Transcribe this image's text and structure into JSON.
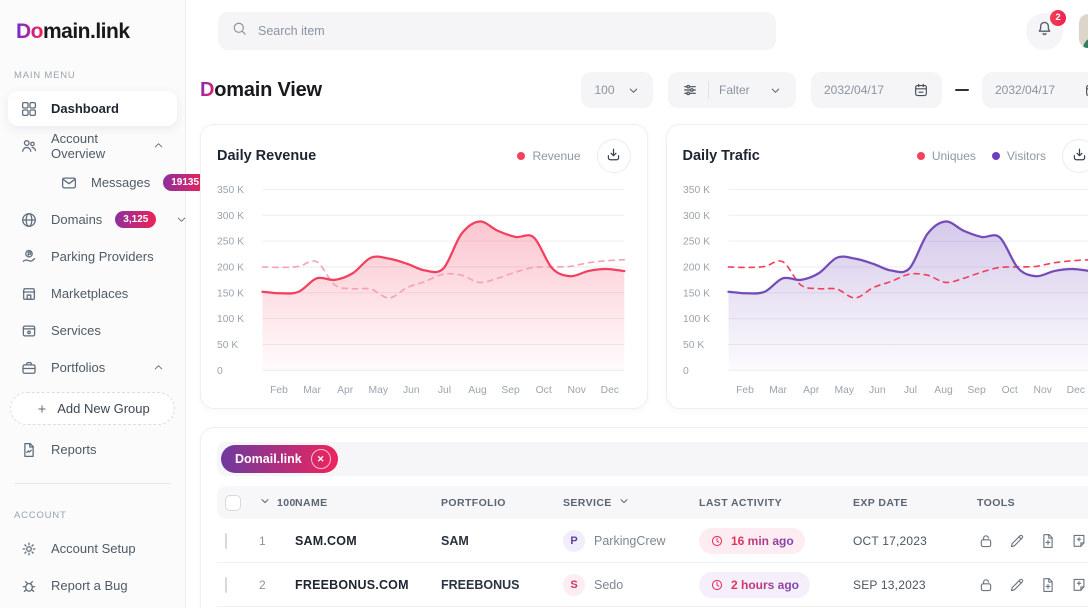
{
  "colors": {
    "brand_purple": "#7a2cc9",
    "brand_pink": "#ef2158",
    "red": "#f2415f",
    "red_light": "#f6a2b4",
    "purple": "#744cb8",
    "badge_gradient": [
      "#8d2f9e",
      "#f02356"
    ]
  },
  "sidebar": {
    "logo": {
      "accent": "Do",
      "rest": "main.link"
    },
    "main_menu_label": "MAIN MENU",
    "account_label": "ACCOUNT",
    "items": [
      {
        "label": "Dashboard",
        "icon": "dashboard",
        "active": true
      },
      {
        "label": "Account Overview",
        "icon": "people",
        "chevron": "up"
      },
      {
        "label": "Messages",
        "icon": "envelope",
        "badge": "19135",
        "indent": true
      },
      {
        "label": "Domains",
        "icon": "globe",
        "badge": "3,125",
        "chevron": "down"
      },
      {
        "label": "Parking Providers",
        "icon": "parking"
      },
      {
        "label": "Marketplaces",
        "icon": "store"
      },
      {
        "label": "Services",
        "icon": "box"
      },
      {
        "label": "Portfolios",
        "icon": "briefcase",
        "chevron": "up"
      },
      {
        "label": "Add New Group",
        "icon": "plus",
        "dashed": true
      },
      {
        "label": "Reports",
        "icon": "report"
      }
    ],
    "account_items": [
      {
        "label": "Account Setup",
        "icon": "gear"
      },
      {
        "label": "Report a Bug",
        "icon": "bug"
      }
    ]
  },
  "topbar": {
    "search_placeholder": "Search item",
    "notification_count": "2"
  },
  "header": {
    "title_accent": "D",
    "title_rest": "omain View",
    "page_size": "100",
    "filter_label": "Falter",
    "date_from": "2032/04/17",
    "date_to": "2032/04/17"
  },
  "chart_data": [
    {
      "type": "line",
      "title": "Daily Revenue",
      "legend": [
        {
          "label": "Revenue",
          "color": "#f2415f"
        }
      ],
      "x_labels": [
        "Feb",
        "Mar",
        "Apr",
        "May",
        "Jun",
        "Jul",
        "Aug",
        "Sep",
        "Oct",
        "Nov",
        "Dec"
      ],
      "y_ticks": [
        "350 K",
        "300 K",
        "250 K",
        "200 K",
        "150 K",
        "100 K",
        "50 K",
        "0"
      ],
      "ylim_k": [
        0,
        350
      ],
      "grid": true,
      "series": [
        {
          "name": "Revenue",
          "style": "area-solid",
          "color": "#f2415f",
          "values_k": [
            152,
            149,
            152,
            178,
            175,
            188,
            218,
            216,
            206,
            193,
            197,
            264,
            288,
            270,
            258,
            257,
            198,
            182,
            192,
            196,
            192
          ]
        },
        {
          "name": "Revenue (previous period)",
          "style": "dashed",
          "color": "#f6a2b4",
          "values_k": [
            200,
            199,
            201,
            210,
            165,
            158,
            157,
            140,
            160,
            172,
            186,
            184,
            170,
            178,
            190,
            199,
            200,
            201,
            208,
            212,
            214
          ]
        }
      ]
    },
    {
      "type": "line",
      "title": "Daily Trafic",
      "legend": [
        {
          "label": "Uniques",
          "color": "#f2415f"
        },
        {
          "label": "Visitors",
          "color": "#6d3fc0"
        }
      ],
      "x_labels": [
        "Feb",
        "Mar",
        "Apr",
        "May",
        "Jun",
        "Jul",
        "Aug",
        "Sep",
        "Oct",
        "Nov",
        "Dec"
      ],
      "y_ticks": [
        "350 K",
        "300 K",
        "250 K",
        "200 K",
        "150 K",
        "100 K",
        "50 K",
        "0"
      ],
      "ylim_k": [
        0,
        350
      ],
      "grid": true,
      "series": [
        {
          "name": "Visitors",
          "style": "area-solid",
          "color": "#744cb8",
          "values_k": [
            152,
            149,
            152,
            178,
            175,
            188,
            218,
            216,
            206,
            193,
            197,
            264,
            288,
            270,
            258,
            257,
            198,
            182,
            192,
            196,
            192
          ]
        },
        {
          "name": "Uniques",
          "style": "dashed",
          "color": "#f2415f",
          "values_k": [
            200,
            199,
            201,
            210,
            165,
            158,
            157,
            140,
            160,
            172,
            186,
            184,
            170,
            178,
            190,
            199,
            200,
            201,
            208,
            212,
            214
          ]
        }
      ]
    }
  ],
  "table": {
    "chip": {
      "label": "Domail.link",
      "close": "✕"
    },
    "columns": [
      {
        "type": "checkbox"
      },
      {
        "label": "100",
        "chevron": "before"
      },
      {
        "label": "NAME"
      },
      {
        "label": "PORTFOLIO"
      },
      {
        "label": "SERVICE",
        "chevron": "after"
      },
      {
        "label": "LAST ACTIVITY"
      },
      {
        "label": "EXP DATE"
      },
      {
        "label": "TOOLS"
      }
    ],
    "rows": [
      {
        "num": "1",
        "name": "SAM.COM",
        "portfolio": "SAM",
        "service": {
          "initial": "P",
          "name": "ParkingCrew",
          "tint": "purple"
        },
        "last_activity": "16 min ago",
        "activity_tint": "pink",
        "exp_date": "OCT 17,2023",
        "tools": [
          "lock",
          "pencil",
          "file-plus",
          "copy-plus"
        ]
      },
      {
        "num": "2",
        "name": "FREEBONUS.COM",
        "portfolio": "FREEBONUS",
        "service": {
          "initial": "S",
          "name": "Sedo",
          "tint": "pink"
        },
        "last_activity": "2 hours ago",
        "activity_tint": "lavender",
        "exp_date": "SEP 13,2023",
        "tools": [
          "lock",
          "pencil",
          "file-plus",
          "copy-plus"
        ]
      }
    ]
  }
}
